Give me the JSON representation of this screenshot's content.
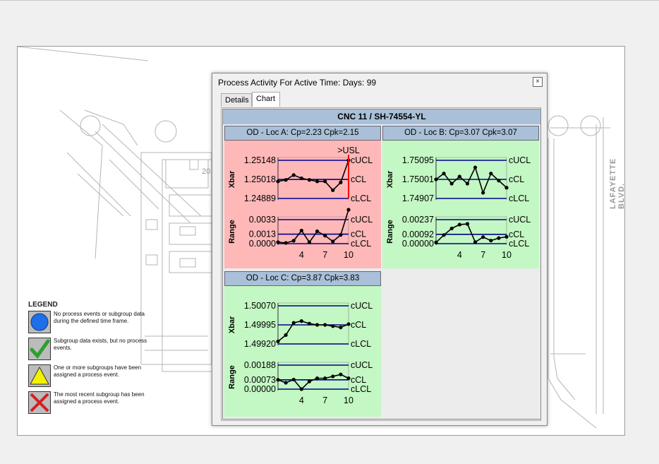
{
  "dialog": {
    "title": "Process Activity For Active Time: Days: 99",
    "close_label": "×",
    "tabs": [
      {
        "label": "Details"
      },
      {
        "label": "Chart"
      }
    ],
    "active_tab": "Chart"
  },
  "chart_header": "CNC 11 / SH-74554-YL",
  "colors": {
    "red_bg": "#ffb8b8",
    "green_bg": "#c3f7c3",
    "header_bg": "#a9c0d8",
    "limit_line": "#00008b",
    "usl_line": "#ff0000"
  },
  "floorplan": {
    "room_label": "20"
  },
  "street_label": "LAFAYETTE BLVD.",
  "legend": {
    "title": "LEGEND",
    "items": [
      {
        "icon": "blue-circle-icon",
        "text": "No process events or subgroup data during the defined time frame."
      },
      {
        "icon": "green-check-icon",
        "text": "Subgroup data exists, but no process events."
      },
      {
        "icon": "yellow-triangle-icon",
        "text": "One or more subgroups have been assigned a process event."
      },
      {
        "icon": "red-x-icon",
        "text": "The most recent subgroup has been assigned a process event."
      }
    ]
  },
  "chart_data": [
    {
      "type": "line",
      "title": "OD - Loc A: Cp=2.23 Cpk=2.15",
      "status": "red",
      "usl_label": ">USL",
      "x_ticks": [
        4,
        7,
        10
      ],
      "xbar": {
        "label": "Xbar",
        "ticks": [
          "1.25148",
          "1.25018",
          "1.24889"
        ],
        "limits": {
          "ucl": 1.25148,
          "cl": 1.25018,
          "lcl": 1.24889
        },
        "limit_labels": [
          "cUCL",
          "cCL",
          "cLCL"
        ],
        "ylim": [
          1.24889,
          1.25148
        ],
        "x": [
          1,
          2,
          3,
          4,
          5,
          6,
          7,
          8,
          9,
          10
        ],
        "values": [
          1.25005,
          1.25015,
          1.25048,
          1.25026,
          1.25015,
          1.25005,
          1.25005,
          1.24945,
          1.24998,
          1.25148
        ]
      },
      "range": {
        "label": "Range",
        "ticks": [
          "0.0033",
          "0.0013",
          "0.0000"
        ],
        "limits": {
          "ucl": 0.0033,
          "cl": 0.0013,
          "lcl": 0.0
        },
        "limit_labels": [
          "cUCL",
          "cCL",
          "cLCL"
        ],
        "ylim": [
          0,
          0.0033
        ],
        "x": [
          1,
          2,
          3,
          4,
          5,
          6,
          7,
          8,
          9,
          10
        ],
        "values": [
          0.0002,
          0.0001,
          0.0004,
          0.0018,
          0.0002,
          0.0017,
          0.0011,
          0.0003,
          0.0012,
          0.0055
        ]
      }
    },
    {
      "type": "line",
      "title": "OD - Loc B: Cp=3.07 Cpk=3.07",
      "status": "green",
      "x_ticks": [
        4,
        7,
        10
      ],
      "xbar": {
        "label": "Xbar",
        "ticks": [
          "1.75095",
          "1.75001",
          "1.74907"
        ],
        "limits": {
          "ucl": 1.75095,
          "cl": 1.75001,
          "lcl": 1.74907
        },
        "limit_labels": [
          "cUCL",
          "cCL",
          "cLCL"
        ],
        "ylim": [
          1.74907,
          1.75095
        ],
        "x": [
          1,
          2,
          3,
          4,
          5,
          6,
          7,
          8,
          9,
          10
        ],
        "values": [
          1.75001,
          1.7503,
          1.7498,
          1.75015,
          1.7498,
          1.7506,
          1.74935,
          1.7503,
          1.74995,
          1.7496
        ]
      },
      "range": {
        "label": "Range",
        "ticks": [
          "0.00237",
          "0.00092",
          "0.00000"
        ],
        "limits": {
          "ucl": 0.00237,
          "cl": 0.00092,
          "lcl": 0.0
        },
        "limit_labels": [
          "cUCL",
          "cCL",
          "cLCL"
        ],
        "ylim": [
          0,
          0.00237
        ],
        "x": [
          1,
          2,
          3,
          4,
          5,
          6,
          7,
          8,
          9,
          10
        ],
        "values": [
          0.00012,
          0.00085,
          0.0015,
          0.00188,
          0.00195,
          0.00015,
          0.00065,
          0.0003,
          0.00055,
          0.00068
        ]
      }
    },
    {
      "type": "line",
      "title": "OD - Loc C: Cp=3.87 Cpk=3.83",
      "status": "green",
      "x_ticks": [
        4,
        7,
        10
      ],
      "xbar": {
        "label": "Xbar",
        "ticks": [
          "1.50070",
          "1.49995",
          "1.49920"
        ],
        "limits": {
          "ucl": 1.5007,
          "cl": 1.49995,
          "lcl": 1.4992
        },
        "limit_labels": [
          "cUCL",
          "cCL",
          "cLCL"
        ],
        "ylim": [
          1.4992,
          1.5007
        ],
        "x": [
          1,
          2,
          3,
          4,
          5,
          6,
          7,
          8,
          9,
          10
        ],
        "values": [
          1.4993,
          1.49955,
          1.50003,
          1.5001,
          1.5,
          1.49995,
          1.49995,
          1.4999,
          1.49985,
          1.49998
        ]
      },
      "range": {
        "label": "Range",
        "ticks": [
          "0.00188",
          "0.00073",
          "0.00000"
        ],
        "limits": {
          "ucl": 0.00188,
          "cl": 0.00073,
          "lcl": 0.0
        },
        "limit_labels": [
          "cUCL",
          "cCL",
          "cLCL"
        ],
        "ylim": [
          0,
          0.00188
        ],
        "x": [
          1,
          2,
          3,
          4,
          5,
          6,
          7,
          8,
          9,
          10
        ],
        "values": [
          0.00073,
          0.0005,
          0.00075,
          0.0,
          0.0006,
          0.00085,
          0.00085,
          0.001,
          0.00115,
          0.00085
        ]
      }
    }
  ]
}
